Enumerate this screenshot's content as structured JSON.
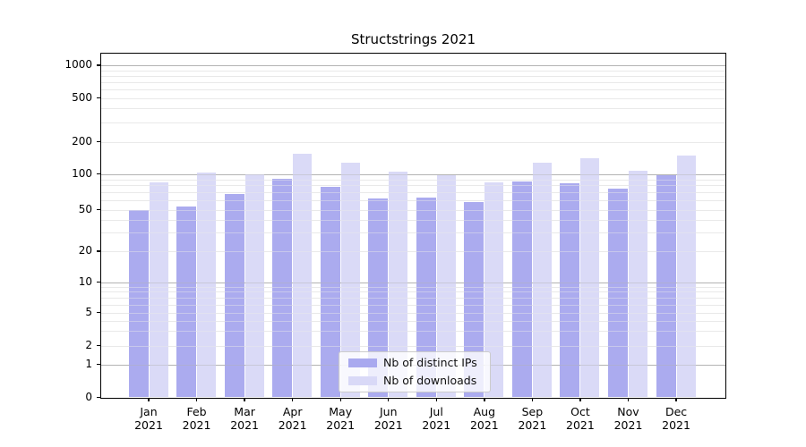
{
  "chart_data": {
    "type": "bar",
    "title": "Structstrings 2021",
    "categories": [
      "Jan",
      "Feb",
      "Mar",
      "Apr",
      "May",
      "Jun",
      "Jul",
      "Aug",
      "Sep",
      "Oct",
      "Nov",
      "Dec"
    ],
    "x_tick_year": "2021",
    "series": [
      {
        "name": "Nb of distinct IPs",
        "color": "#a9a9ef",
        "values": [
          50,
          53,
          68,
          91,
          78,
          62,
          63,
          58,
          87,
          83,
          75,
          98
        ]
      },
      {
        "name": "Nb of downloads",
        "color": "#d9d9f7",
        "values": [
          85,
          103,
          100,
          155,
          127,
          104,
          98,
          85,
          128,
          140,
          106,
          147
        ]
      }
    ],
    "yticks": [
      0,
      1,
      2,
      5,
      10,
      20,
      50,
      100,
      200,
      500,
      1000
    ],
    "ylim": [
      0,
      1270
    ],
    "yscale": "symlog",
    "xlabel": "",
    "ylabel": "",
    "grid": "horizontal; dark major lines at 1, 10, 100, 1000; faint minor log lines",
    "legend_position": "inside lower center",
    "colors": {
      "major_gridline": "#b3b3b3",
      "minor_gridline": "#e9e9e9",
      "axis": "#000000",
      "background": "#ffffff"
    }
  }
}
